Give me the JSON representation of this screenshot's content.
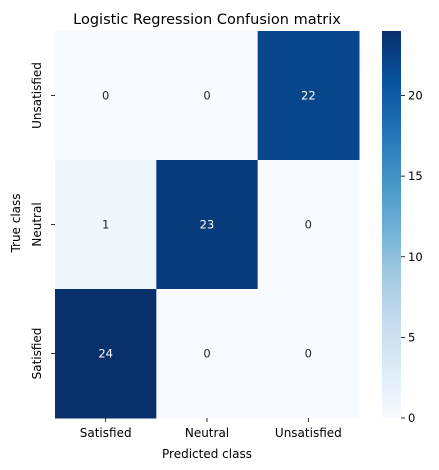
{
  "chart_data": {
    "type": "heatmap",
    "title": "Logistic Regression Confusion matrix",
    "xlabel": "Predicted class",
    "ylabel": "True class",
    "x_categories": [
      "Satisfied",
      "Neutral",
      "Unsatisfied"
    ],
    "y_categories": [
      "Unsatisfied",
      "Neutral",
      "Satisfied"
    ],
    "values": [
      [
        0,
        0,
        22
      ],
      [
        1,
        23,
        0
      ],
      [
        24,
        0,
        0
      ]
    ],
    "colorbar": {
      "range": [
        0,
        24
      ],
      "ticks": [
        0,
        5,
        10,
        15,
        20
      ],
      "tick_labels": [
        "0",
        "5",
        "10",
        "15",
        "20"
      ],
      "colormap": "Blues"
    },
    "colormap_stops": [
      "#f7fbff",
      "#deebf7",
      "#c6dbef",
      "#9ecae1",
      "#6baed6",
      "#4292c6",
      "#2171b5",
      "#08519c",
      "#08306b"
    ]
  }
}
